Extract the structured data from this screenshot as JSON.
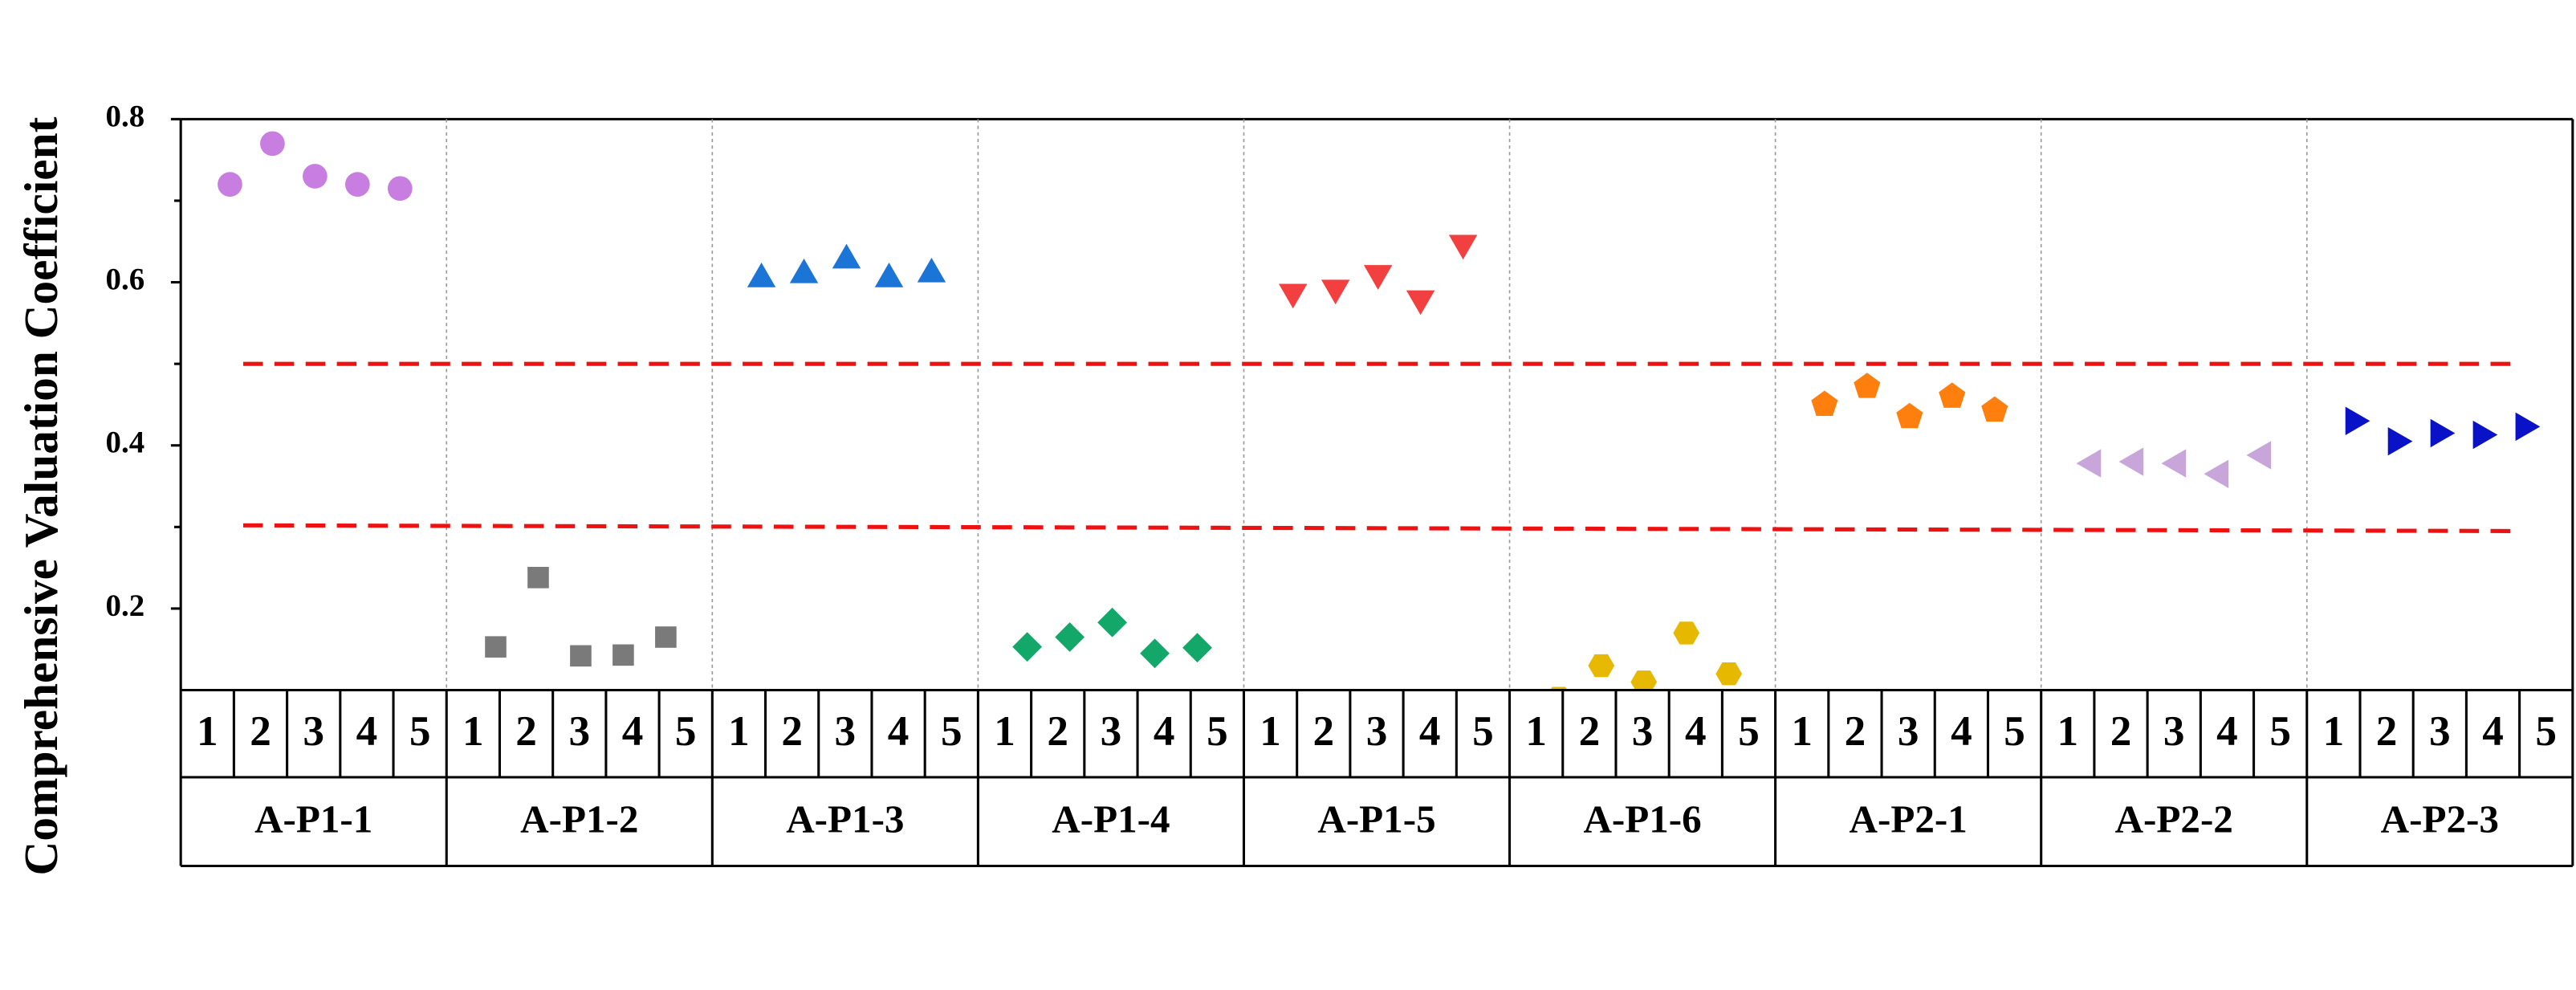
{
  "chart_data": {
    "type": "dot",
    "y_label": "Comprehensive Valuation Coefficient",
    "categories": [
      "1",
      "2",
      "3",
      "4",
      "5"
    ],
    "ylim": [
      0.1,
      0.8
    ],
    "yticks": [
      0.2,
      0.4,
      0.6,
      0.8
    ],
    "yminorticks": [
      0.3,
      0.5,
      0.7
    ],
    "reference_lines": {
      "color": "#ee1111",
      "lines": [
        [
          0.5,
          0.5
        ],
        [
          0.302,
          0.295
        ]
      ]
    },
    "series": [
      {
        "name": "A-P1-1",
        "marker": "circle",
        "color": "#c77ee0",
        "values": [
          0.72,
          0.77,
          0.73,
          0.72,
          0.715
        ]
      },
      {
        "name": "A-P1-2",
        "marker": "square",
        "color": "#7a7a7a",
        "values": [
          0.153,
          0.238,
          0.142,
          0.143,
          0.165
        ]
      },
      {
        "name": "A-P1-3",
        "marker": "triangle-up",
        "color": "#1a75d6",
        "values": [
          0.607,
          0.612,
          0.63,
          0.607,
          0.613
        ]
      },
      {
        "name": "A-P1-4",
        "marker": "diamond",
        "color": "#13a86a",
        "values": [
          0.153,
          0.165,
          0.183,
          0.145,
          0.152
        ]
      },
      {
        "name": "A-P1-5",
        "marker": "triangle-down",
        "color": "#f23f3f",
        "values": [
          0.585,
          0.59,
          0.608,
          0.577,
          0.645
        ]
      },
      {
        "name": "A-P1-6",
        "marker": "hexagon",
        "color": "#e6b800",
        "values": [
          0.09,
          0.13,
          0.11,
          0.17,
          0.12
        ]
      },
      {
        "name": "A-P2-1",
        "marker": "pentagon",
        "color": "#ff7f0e",
        "values": [
          0.45,
          0.472,
          0.435,
          0.46,
          0.443
        ]
      },
      {
        "name": "A-P2-2",
        "marker": "triangle-left",
        "color": "#c8a6d9",
        "values": [
          0.378,
          0.38,
          0.378,
          0.365,
          0.388
        ]
      },
      {
        "name": "A-P2-3",
        "marker": "triangle-right",
        "color": "#0a12c8",
        "values": [
          0.43,
          0.405,
          0.415,
          0.413,
          0.423
        ]
      }
    ]
  }
}
